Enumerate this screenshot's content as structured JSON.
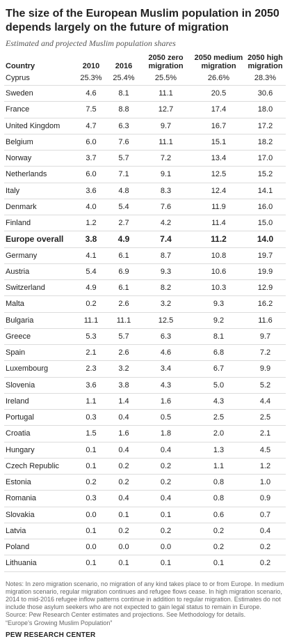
{
  "title": "The size of the European Muslim population in 2050 depends largely on the future of migration",
  "subtitle": "Estimated and projected Muslim population shares",
  "table": {
    "headers": [
      "Country",
      "2010",
      "2016",
      "2050 zero migration",
      "2050 medium migration",
      "2050 high migration"
    ],
    "rows": [
      [
        "Cyprus",
        "25.3%",
        "25.4%",
        "25.5%",
        "26.6%",
        "28.3%"
      ],
      [
        "Sweden",
        "4.6",
        "8.1",
        "11.1",
        "20.5",
        "30.6"
      ],
      [
        "France",
        "7.5",
        "8.8",
        "12.7",
        "17.4",
        "18.0"
      ],
      [
        "United Kingdom",
        "4.7",
        "6.3",
        "9.7",
        "16.7",
        "17.2"
      ],
      [
        "Belgium",
        "6.0",
        "7.6",
        "11.1",
        "15.1",
        "18.2"
      ],
      [
        "Norway",
        "3.7",
        "5.7",
        "7.2",
        "13.4",
        "17.0"
      ],
      [
        "Netherlands",
        "6.0",
        "7.1",
        "9.1",
        "12.5",
        "15.2"
      ],
      [
        "Italy",
        "3.6",
        "4.8",
        "8.3",
        "12.4",
        "14.1"
      ],
      [
        "Denmark",
        "4.0",
        "5.4",
        "7.6",
        "11.9",
        "16.0"
      ],
      [
        "Finland",
        "1.2",
        "2.7",
        "4.2",
        "11.4",
        "15.0"
      ],
      [
        "Europe overall",
        "3.8",
        "4.9",
        "7.4",
        "11.2",
        "14.0"
      ],
      [
        "Germany",
        "4.1",
        "6.1",
        "8.7",
        "10.8",
        "19.7"
      ],
      [
        "Austria",
        "5.4",
        "6.9",
        "9.3",
        "10.6",
        "19.9"
      ],
      [
        "Switzerland",
        "4.9",
        "6.1",
        "8.2",
        "10.3",
        "12.9"
      ],
      [
        "Malta",
        "0.2",
        "2.6",
        "3.2",
        "9.3",
        "16.2"
      ],
      [
        "Bulgaria",
        "11.1",
        "11.1",
        "12.5",
        "9.2",
        "11.6"
      ],
      [
        "Greece",
        "5.3",
        "5.7",
        "6.3",
        "8.1",
        "9.7"
      ],
      [
        "Spain",
        "2.1",
        "2.6",
        "4.6",
        "6.8",
        "7.2"
      ],
      [
        "Luxembourg",
        "2.3",
        "3.2",
        "3.4",
        "6.7",
        "9.9"
      ],
      [
        "Slovenia",
        "3.6",
        "3.8",
        "4.3",
        "5.0",
        "5.2"
      ],
      [
        "Ireland",
        "1.1",
        "1.4",
        "1.6",
        "4.3",
        "4.4"
      ],
      [
        "Portugal",
        "0.3",
        "0.4",
        "0.5",
        "2.5",
        "2.5"
      ],
      [
        "Croatia",
        "1.5",
        "1.6",
        "1.8",
        "2.0",
        "2.1"
      ],
      [
        "Hungary",
        "0.1",
        "0.4",
        "0.4",
        "1.3",
        "4.5"
      ],
      [
        "Czech Republic",
        "0.1",
        "0.2",
        "0.2",
        "1.1",
        "1.2"
      ],
      [
        "Estonia",
        "0.2",
        "0.2",
        "0.2",
        "0.8",
        "1.0"
      ],
      [
        "Romania",
        "0.3",
        "0.4",
        "0.4",
        "0.8",
        "0.9"
      ],
      [
        "Slovakia",
        "0.0",
        "0.1",
        "0.1",
        "0.6",
        "0.7"
      ],
      [
        "Latvia",
        "0.1",
        "0.2",
        "0.2",
        "0.2",
        "0.4"
      ],
      [
        "Poland",
        "0.0",
        "0.0",
        "0.0",
        "0.2",
        "0.2"
      ],
      [
        "Lithuania",
        "0.1",
        "0.1",
        "0.1",
        "0.1",
        "0.2"
      ]
    ],
    "bold_row": "Europe overall"
  },
  "notes": [
    "Notes: In zero migration scenario, no migration of any kind takes place to or from Europe. In medium migration scenario, regular migration continues and refugee flows cease. In high migration scenario, 2014 to mid-2016 refugee inflow patterns continue in addition to regular migration. Estimates do not include those asylum seekers who are not expected to gain legal status to remain in Europe.",
    "Source: Pew Research Center estimates and projections. See Methodology for details.",
    "“Europe’s Growing Muslim Population”"
  ],
  "brand": "PEW RESEARCH CENTER"
}
